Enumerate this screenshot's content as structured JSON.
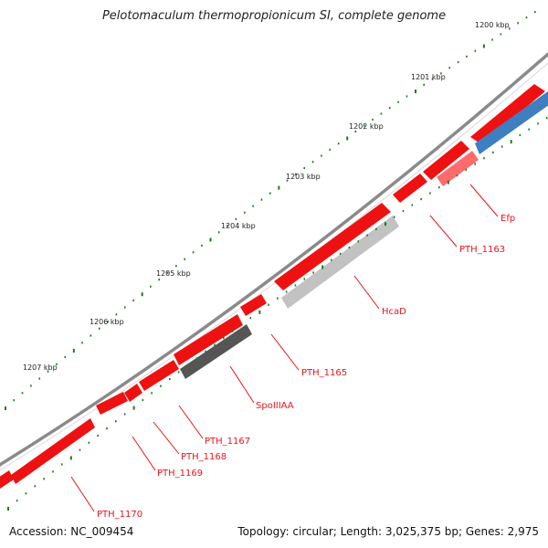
{
  "title": "Pelotomaculum thermopropionicum SI, complete genome",
  "footer": {
    "accession": "Accession: NC_009454",
    "stats": "Topology: circular; Length: 3,025,375 bp; Genes: 2,975"
  },
  "kbp_labels": [
    "1200 kbp",
    "1201 kbp",
    "1202 kbp",
    "1203 kbp",
    "1204 kbp",
    "1205 kbp",
    "1206 kbp",
    "1207 kbp"
  ],
  "gene_labels": [
    "Efp",
    "PTH_1163",
    "HcaD",
    "PTH_1165",
    "SpoIIIAA",
    "PTH_1167",
    "PTH_1168",
    "PTH_1169",
    "PTH_1170"
  ],
  "colors": {
    "backbone": "#7a7a7a",
    "forward_gene": "#ee1111",
    "reverse_gene_highlight": "#ff6b6b",
    "label_red": "#e8141b",
    "tick_green": "#1f7a1f",
    "hcaD_gray": "#bdbdbd",
    "spoIIIAA_gray": "#555555",
    "blue_gene": "#3d7fc0"
  }
}
